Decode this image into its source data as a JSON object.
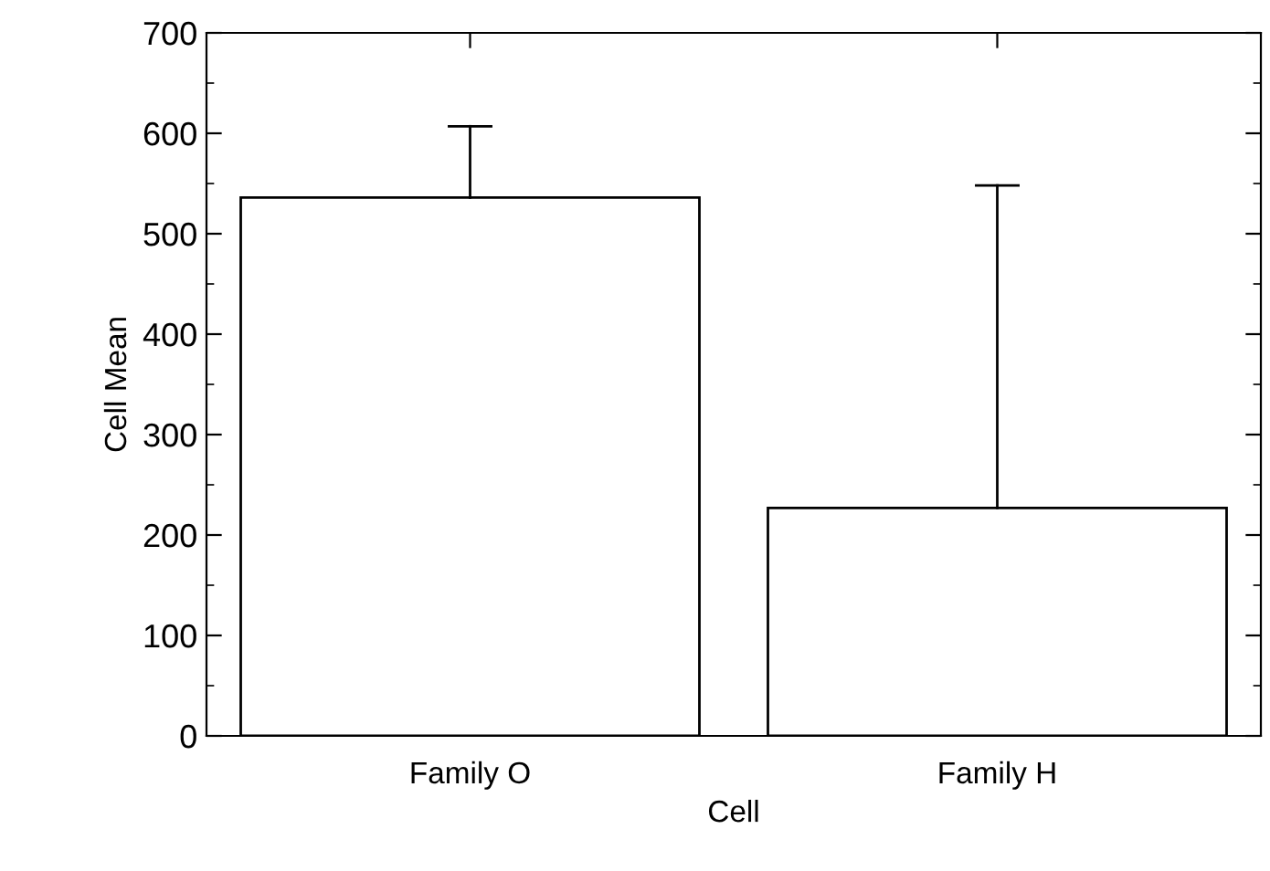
{
  "chart_data": {
    "type": "bar",
    "xlabel": "Cell",
    "ylabel": "Cell Mean",
    "categories": [
      "Family O",
      "Family H"
    ],
    "values": [
      536,
      227
    ],
    "errors": [
      [
        536,
        607
      ],
      [
        227,
        548
      ]
    ],
    "color": "#ffffff",
    "ylim": [
      0,
      700
    ],
    "yticks": [
      0,
      100,
      200,
      300,
      400,
      500,
      600,
      700
    ],
    "grid": false,
    "legend": false
  }
}
